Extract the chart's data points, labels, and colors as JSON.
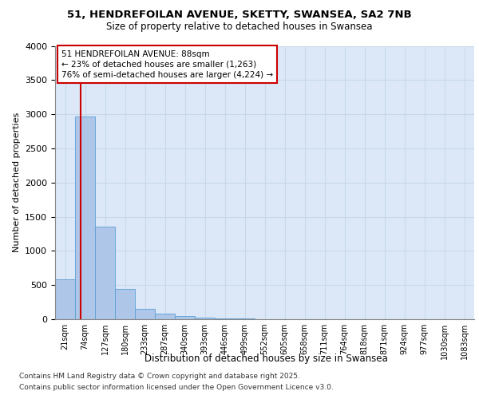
{
  "title_line1": "51, HENDREFOILAN AVENUE, SKETTY, SWANSEA, SA2 7NB",
  "title_line2": "Size of property relative to detached houses in Swansea",
  "xlabel": "Distribution of detached houses by size in Swansea",
  "ylabel": "Number of detached properties",
  "bar_labels": [
    "21sqm",
    "74sqm",
    "127sqm",
    "180sqm",
    "233sqm",
    "287sqm",
    "340sqm",
    "393sqm",
    "446sqm",
    "499sqm",
    "552sqm",
    "605sqm",
    "658sqm",
    "711sqm",
    "764sqm",
    "818sqm",
    "871sqm",
    "924sqm",
    "977sqm",
    "1030sqm",
    "1083sqm"
  ],
  "bar_values": [
    580,
    2970,
    1350,
    440,
    155,
    80,
    50,
    25,
    15,
    8,
    5,
    4,
    3,
    2,
    2,
    1,
    1,
    1,
    0,
    0,
    0
  ],
  "bar_color": "#aec6e8",
  "bar_edge_color": "#5a9fd4",
  "grid_color": "#c8d8ea",
  "background_color": "#dce8f8",
  "property_size_label": "51 HENDREFOILAN AVENUE: 88sqm",
  "smaller_pct": "23%",
  "smaller_count": "1,263",
  "larger_pct": "76%",
  "larger_count": "4,224",
  "red_line_color": "#cc0000",
  "annotation_box_color": "#cc0000",
  "ylim": [
    0,
    4000
  ],
  "yticks": [
    0,
    500,
    1000,
    1500,
    2000,
    2500,
    3000,
    3500,
    4000
  ],
  "footer_line1": "Contains HM Land Registry data © Crown copyright and database right 2025.",
  "footer_line2": "Contains public sector information licensed under the Open Government Licence v3.0.",
  "fig_bg_color": "#ffffff",
  "red_line_x": 0.764
}
